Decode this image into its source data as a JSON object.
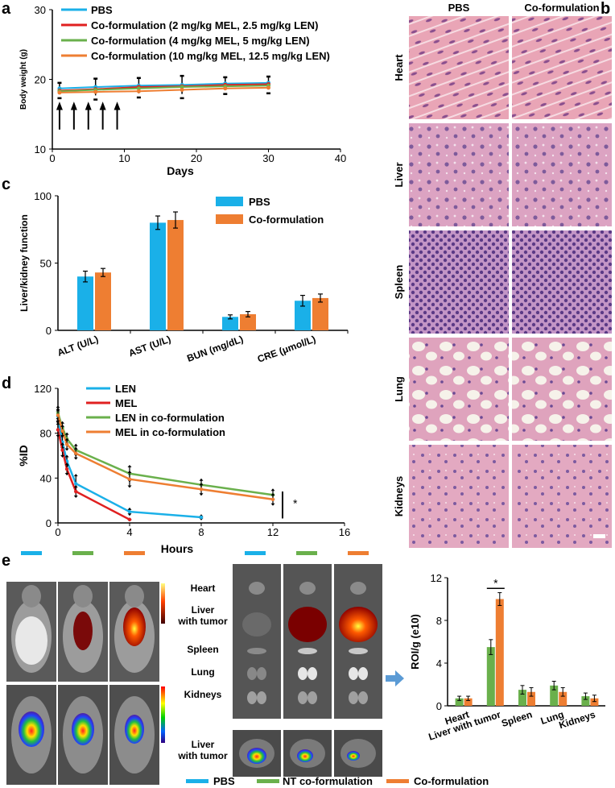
{
  "panel_labels": {
    "a": "a",
    "b": "b",
    "c": "c",
    "d": "d",
    "e": "e"
  },
  "colors": {
    "pbs": "#1ab0e8",
    "red": "#e02020",
    "green": "#6ab04c",
    "orange": "#ee7e32",
    "he_pink": "#e6a0b4",
    "he_purple": "#8a5a9c"
  },
  "chart_data": [
    {
      "id": "a",
      "type": "line",
      "xlabel": "Days",
      "ylabel": "Body weight (g)",
      "xlim": [
        0,
        40
      ],
      "ylim": [
        10,
        30
      ],
      "xticks": [
        0,
        10,
        20,
        30,
        40
      ],
      "yticks": [
        10,
        20,
        30
      ],
      "legend_placement": "top-left",
      "x": [
        1,
        6,
        12,
        18,
        24,
        30
      ],
      "series": [
        {
          "name": "PBS",
          "color": "#1ab0e8",
          "values": [
            18.7,
            18.9,
            19.1,
            19.2,
            19.4,
            19.5
          ],
          "err": [
            0.8,
            1.2,
            1.1,
            1.3,
            0.9,
            0.9
          ]
        },
        {
          "name": "Co-formulation (2 mg/kg MEL, 2.5 mg/kg LEN)",
          "color": "#e02020",
          "values": [
            18.4,
            18.6,
            18.9,
            19.0,
            19.2,
            19.3
          ],
          "err": [
            0.8,
            1.2,
            1.1,
            1.3,
            0.9,
            0.9
          ]
        },
        {
          "name": "Co-formulation (4 mg/kg MEL, 5 mg/kg LEN)",
          "color": "#6ab04c",
          "values": [
            18.3,
            18.5,
            18.7,
            18.9,
            19.0,
            19.1
          ],
          "err": [
            0.8,
            1.2,
            1.1,
            1.3,
            0.9,
            0.9
          ]
        },
        {
          "name": "Co-formulation (10 mg/kg MEL, 12.5 mg/kg LEN)",
          "color": "#ee7e32",
          "values": [
            18.1,
            18.2,
            18.3,
            18.5,
            18.7,
            18.8
          ],
          "err": [
            0.8,
            1.2,
            1.1,
            1.3,
            0.9,
            0.9
          ]
        }
      ],
      "arrows_x": [
        1,
        3,
        5,
        7,
        9
      ]
    },
    {
      "id": "c",
      "type": "bar",
      "ylabel": "Liver/kidney function",
      "ylim": [
        0,
        100
      ],
      "yticks": [
        0,
        50,
        100
      ],
      "categories": [
        "ALT (U/L)",
        "AST (U/L)",
        "BUN (mg/dL)",
        "CRE (μmol/L)"
      ],
      "legend_placement": "top-center",
      "series": [
        {
          "name": "PBS",
          "color": "#1ab0e8",
          "values": [
            40,
            80,
            10,
            22
          ],
          "err": [
            4,
            5,
            1.5,
            4
          ]
        },
        {
          "name": "Co-formulation",
          "color": "#ee7e32",
          "values": [
            43,
            82,
            12,
            24
          ],
          "err": [
            3,
            6,
            2,
            3
          ]
        }
      ]
    },
    {
      "id": "d",
      "type": "line",
      "xlabel": "Hours",
      "ylabel": "%ID",
      "xlim": [
        0,
        16
      ],
      "ylim": [
        0,
        120
      ],
      "xticks": [
        0,
        4,
        8,
        12,
        16
      ],
      "yticks": [
        0,
        40,
        80,
        120
      ],
      "legend_placement": "top",
      "significance": "*",
      "series": [
        {
          "name": "LEN",
          "color": "#1ab0e8",
          "x": [
            0,
            0.25,
            0.5,
            1,
            4,
            8
          ],
          "values": [
            95,
            72,
            55,
            35,
            10,
            5
          ],
          "err": [
            6,
            6,
            5,
            8,
            3,
            2
          ]
        },
        {
          "name": "MEL",
          "color": "#e02020",
          "x": [
            0,
            0.25,
            0.5,
            1,
            4
          ],
          "values": [
            83,
            65,
            48,
            28,
            3
          ],
          "err": [
            6,
            6,
            5,
            5,
            1
          ]
        },
        {
          "name": "LEN in co-formulation",
          "color": "#6ab04c",
          "x": [
            0,
            0.25,
            0.5,
            1,
            4,
            8,
            12
          ],
          "values": [
            98,
            85,
            75,
            65,
            44,
            34,
            25
          ],
          "err": [
            6,
            5,
            5,
            5,
            7,
            5,
            5
          ]
        },
        {
          "name": "MEL in co-formulation",
          "color": "#ee7e32",
          "x": [
            0,
            0.25,
            0.5,
            1,
            4,
            8,
            12
          ],
          "values": [
            96,
            82,
            70,
            62,
            39,
            30,
            21
          ],
          "err": [
            6,
            5,
            5,
            5,
            7,
            5,
            5
          ]
        }
      ]
    },
    {
      "id": "e",
      "type": "bar",
      "ylabel": "ROI/g (e10)",
      "ylim": [
        0,
        12
      ],
      "yticks": [
        0,
        4,
        8,
        12
      ],
      "categories": [
        "Heart",
        "Liver with tumor",
        "Spleen",
        "Lung",
        "Kidneys"
      ],
      "significance": "*",
      "series": [
        {
          "name": "NT co-formulation",
          "color": "#6ab04c",
          "values": [
            0.7,
            5.5,
            1.5,
            1.9,
            0.9
          ],
          "err": [
            0.2,
            0.7,
            0.4,
            0.4,
            0.3
          ]
        },
        {
          "name": "Co-formulation",
          "color": "#ee7e32",
          "values": [
            0.7,
            10.0,
            1.3,
            1.3,
            0.7
          ],
          "err": [
            0.2,
            0.6,
            0.4,
            0.4,
            0.3
          ]
        }
      ]
    }
  ],
  "histology": {
    "columns": [
      "PBS",
      "Co-formulation"
    ],
    "rows": [
      "Heart",
      "Liver",
      "Spleen",
      "Lung",
      "Kidneys"
    ]
  },
  "organ_panel": {
    "labels": [
      "Heart",
      "Liver\nwith tumor",
      "Spleen",
      "Lung",
      "Kidneys",
      "Liver\nwith tumor"
    ]
  },
  "bottom_legend": [
    {
      "name": "PBS",
      "color": "#1ab0e8"
    },
    {
      "name": "NT co-formulation",
      "color": "#6ab04c"
    },
    {
      "name": "Co-formulation",
      "color": "#ee7e32"
    }
  ]
}
